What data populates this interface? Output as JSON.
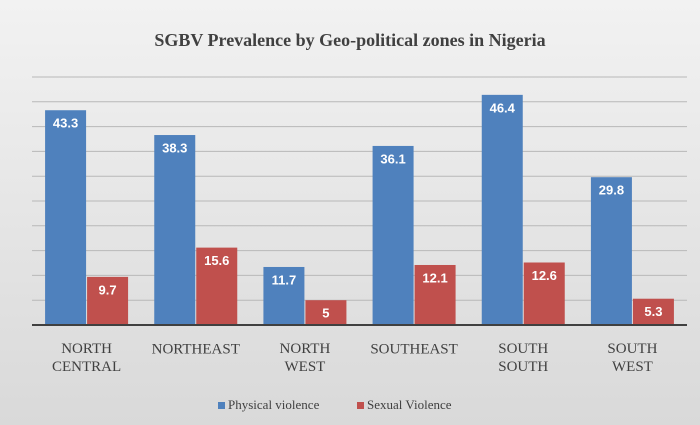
{
  "chart_data": {
    "type": "bar",
    "title": "SGBV Prevalence by Geo-political zones in Nigeria",
    "categories": [
      "NORTH CENTRAL",
      "NORTHEAST",
      "NORTH WEST",
      "SOUTHEAST",
      "SOUTH SOUTH",
      "SOUTH WEST"
    ],
    "series": [
      {
        "name": "Physical violence",
        "color": "#4f81bd",
        "values": [
          43.3,
          38.3,
          11.7,
          36.1,
          46.4,
          29.8
        ]
      },
      {
        "name": "Sexual Violence",
        "color": "#c0504d",
        "values": [
          9.7,
          15.6,
          5,
          12.1,
          12.6,
          5.3
        ]
      }
    ],
    "ylim": [
      0,
      50
    ],
    "yticks": [
      0,
      5,
      10,
      15,
      20,
      25,
      30,
      35,
      40,
      45,
      50
    ],
    "grid": true,
    "ytick_labels": false,
    "legend": "bottom"
  }
}
